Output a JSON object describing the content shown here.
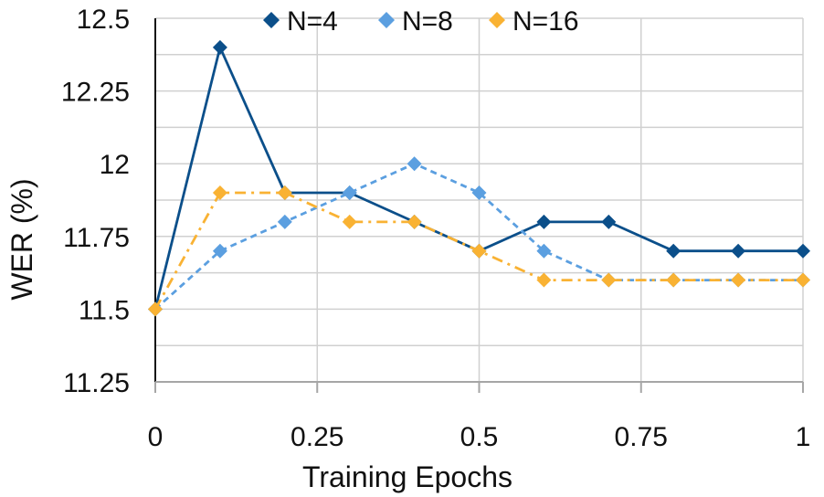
{
  "chart_data": {
    "type": "line",
    "title": "",
    "xlabel": "Training Epochs",
    "ylabel": "WER (%)",
    "xlim": [
      0,
      1
    ],
    "ylim": [
      11.25,
      12.5
    ],
    "x_ticks": [
      0,
      0.25,
      0.5,
      0.75,
      1
    ],
    "x_tick_labels": [
      "0",
      "0.25",
      "0.5",
      "0.75",
      "1"
    ],
    "y_ticks": [
      11.25,
      11.5,
      11.75,
      12,
      12.25,
      12.5
    ],
    "y_tick_labels": [
      "11.25",
      "11.5",
      "11.75",
      "12",
      "12.25",
      "12.5"
    ],
    "x_grid": [
      0.25,
      0.5,
      0.75,
      1
    ],
    "y_grid": [
      11.375,
      11.5,
      11.625,
      11.75,
      11.875,
      12,
      12.125,
      12.25,
      12.375,
      12.5
    ],
    "legend_position": "top",
    "x": [
      0,
      0.1,
      0.2,
      0.3,
      0.4,
      0.5,
      0.6,
      0.7,
      0.8,
      0.9,
      1.0
    ],
    "series": [
      {
        "name": "N=4",
        "color": "#0b4f8a",
        "dash": "solid",
        "values": [
          11.5,
          12.4,
          11.9,
          11.9,
          11.8,
          11.7,
          11.8,
          11.8,
          11.7,
          11.7,
          11.7
        ]
      },
      {
        "name": "N=8",
        "color": "#5b9fe0",
        "dash": "dash",
        "values": [
          11.5,
          11.7,
          11.8,
          11.9,
          12.0,
          11.9,
          11.7,
          11.6,
          11.6,
          11.6,
          11.6
        ]
      },
      {
        "name": "N=16",
        "color": "#f9b233",
        "dash": "dashdot",
        "values": [
          11.5,
          11.9,
          11.9,
          11.8,
          11.8,
          11.7,
          11.6,
          11.6,
          11.6,
          11.6,
          11.6
        ]
      }
    ]
  }
}
